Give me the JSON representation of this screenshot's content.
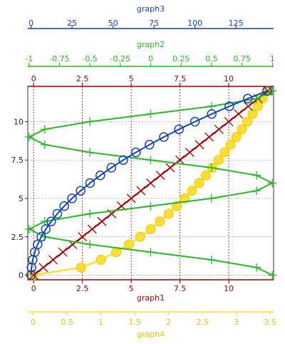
{
  "chart_data": {
    "type": "line",
    "grid": true,
    "colors": {
      "graph1": "#aa0000",
      "graph2": "#22bb22",
      "graph3": "#1144bb",
      "graph4": "#ffdd33",
      "grid": "#aaaaaa"
    },
    "axes": {
      "left": {
        "ticks": [
          "0",
          "2.5",
          "5",
          "7.5",
          "10"
        ],
        "values": [
          0,
          2.5,
          5,
          7.5,
          10
        ],
        "range": [
          -0.3,
          12.3
        ]
      },
      "graph1": {
        "label": "graph1",
        "range": [
          -0.3,
          12.3
        ],
        "ticks": [
          "0",
          "2.5",
          "5",
          "7.5",
          "10"
        ],
        "values": [
          0,
          2.5,
          5,
          7.5,
          10
        ]
      },
      "graph2": {
        "label": "graph2",
        "range": [
          -1.01,
          1.01
        ],
        "ticks": [
          "-1",
          "-0.75",
          "-0.5",
          "-0.25",
          "0",
          "0.25",
          "0.5",
          "0.75",
          "1"
        ],
        "values": [
          -1,
          -0.75,
          -0.5,
          -0.25,
          0,
          0.25,
          0.5,
          0.75,
          1
        ]
      },
      "graph3": {
        "label": "graph3",
        "range": [
          -2,
          148
        ],
        "ticks": [
          "0",
          "25",
          "50",
          "75",
          "100",
          "125"
        ],
        "values": [
          0,
          25,
          50,
          75,
          100,
          125
        ]
      },
      "graph4": {
        "label": "graph4",
        "range": [
          -0.08,
          3.55
        ],
        "ticks": [
          "0",
          "0.5",
          "1",
          "1.5",
          "2",
          "2.5",
          "3",
          "3.5"
        ],
        "values": [
          0,
          0.5,
          1,
          1.5,
          2,
          2.5,
          3,
          3.5
        ]
      }
    },
    "series": [
      {
        "name": "graph1",
        "marker": "x",
        "x": [
          0,
          0.5,
          1,
          1.5,
          2,
          2.5,
          3,
          3.5,
          4,
          4.5,
          5,
          5.5,
          6,
          6.5,
          7,
          7.5,
          8,
          8.5,
          9,
          9.5,
          10,
          10.5,
          11,
          11.5,
          12
        ],
        "y": [
          0,
          0.5,
          1,
          1.5,
          2,
          2.5,
          3,
          3.5,
          4,
          4.5,
          5,
          5.5,
          6,
          6.5,
          7,
          7.5,
          8,
          8.5,
          9,
          9.5,
          10,
          10.5,
          11,
          11.5,
          12
        ]
      },
      {
        "name": "graph2",
        "marker": "+",
        "x": [
          1,
          0.87,
          0.5,
          0,
          -0.5,
          -0.87,
          -1,
          -0.87,
          -0.5,
          0,
          0.5,
          0.87,
          1,
          0.87,
          0.5,
          0,
          -0.5,
          -0.87,
          -1,
          -0.87,
          -0.5,
          0,
          0.5,
          0.87,
          1
        ],
        "y": [
          0,
          0.5,
          1,
          1.5,
          2,
          2.5,
          3,
          3.5,
          4,
          4.5,
          5,
          5.5,
          6,
          6.5,
          7,
          7.5,
          8,
          8.5,
          9,
          9.5,
          10,
          10.5,
          11,
          11.5,
          12
        ]
      },
      {
        "name": "graph3",
        "marker": "o",
        "x": [
          0,
          0.25,
          1,
          2.25,
          4,
          6.25,
          9,
          12.25,
          16,
          20.25,
          25,
          30.25,
          36,
          42.25,
          49,
          56.25,
          64,
          72.25,
          81,
          90.25,
          100,
          110.25,
          121,
          132.25,
          144
        ],
        "y": [
          0,
          0.5,
          1,
          1.5,
          2,
          2.5,
          3,
          3.5,
          4,
          4.5,
          5,
          5.5,
          6,
          6.5,
          7,
          7.5,
          8,
          8.5,
          9,
          9.5,
          10,
          10.5,
          11,
          11.5,
          12
        ]
      },
      {
        "name": "graph4",
        "marker": "filled-circle",
        "x": [
          0,
          0.707,
          1,
          1.225,
          1.414,
          1.581,
          1.732,
          1.871,
          2,
          2.121,
          2.236,
          2.345,
          2.449,
          2.55,
          2.646,
          2.739,
          2.828,
          2.915,
          3,
          3.082,
          3.162,
          3.24,
          3.317,
          3.391,
          3.464
        ],
        "y": [
          0,
          0.5,
          1,
          1.5,
          2,
          2.5,
          3,
          3.5,
          4,
          4.5,
          5,
          5.5,
          6,
          6.5,
          7,
          7.5,
          8,
          8.5,
          9,
          9.5,
          10,
          10.5,
          11,
          11.5,
          12
        ]
      }
    ]
  }
}
